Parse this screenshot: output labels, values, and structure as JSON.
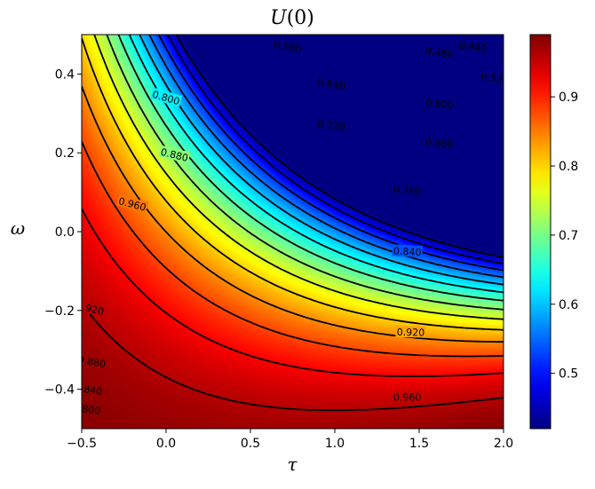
{
  "chart_data": {
    "type": "heatmap",
    "title_main": "U",
    "title_arg": "(0)",
    "xlabel": "τ",
    "ylabel": "ω",
    "xlim": [
      -0.5,
      2.0
    ],
    "ylim": [
      -0.5,
      0.5
    ],
    "x_ticks": [
      "−0.5",
      "0.0",
      "0.5",
      "1.0",
      "1.5",
      "2.0"
    ],
    "x_tick_values": [
      -0.5,
      0.0,
      0.5,
      1.0,
      1.5,
      2.0
    ],
    "y_ticks": [
      "−0.4",
      "−0.2",
      "0.0",
      "0.2",
      "0.4"
    ],
    "y_tick_values": [
      -0.4,
      -0.2,
      0.0,
      0.2,
      0.4
    ],
    "colormap": "jet",
    "color_range": [
      0.42,
      0.99
    ],
    "colorbar_ticks": [
      "0.5",
      "0.6",
      "0.7",
      "0.8",
      "0.9"
    ],
    "colorbar_tick_values": [
      0.5,
      0.6,
      0.7,
      0.8,
      0.9
    ],
    "contour_levels": [
      0.44,
      0.48,
      0.52,
      0.56,
      0.6,
      0.64,
      0.68,
      0.72,
      0.76,
      0.8,
      0.84,
      0.88,
      0.92,
      0.96
    ],
    "contour_labels": [
      {
        "text": "0.440",
        "tau": 1.82,
        "omega": 0.47
      },
      {
        "text": "0.480",
        "tau": 1.62,
        "omega": 0.455
      },
      {
        "text": "0.520",
        "tau": 1.95,
        "omega": 0.39
      },
      {
        "text": "0.560",
        "tau": 0.72,
        "omega": 0.47
      },
      {
        "text": "0.600",
        "tau": 1.62,
        "omega": 0.325
      },
      {
        "text": "0.640",
        "tau": 0.98,
        "omega": 0.375
      },
      {
        "text": "0.680",
        "tau": 1.62,
        "omega": 0.225
      },
      {
        "text": "0.720",
        "tau": 0.98,
        "omega": 0.27
      },
      {
        "text": "0.760",
        "tau": 1.43,
        "omega": 0.105
      },
      {
        "text": "0.800",
        "tau": 0.0,
        "omega": 0.34
      },
      {
        "text": "0.840",
        "tau": 1.43,
        "omega": -0.05
      },
      {
        "text": "0.880",
        "tau": 0.05,
        "omega": 0.195
      },
      {
        "text": "0.920",
        "tau": 1.45,
        "omega": -0.255
      },
      {
        "text": "0.960",
        "tau": -0.2,
        "omega": 0.07
      },
      {
        "text": "0.960",
        "tau": 1.43,
        "omega": -0.42
      },
      {
        "text": "0.920",
        "tau": -0.45,
        "omega": -0.195
      },
      {
        "text": "0.880",
        "tau": -0.44,
        "omega": -0.33
      },
      {
        "text": "0.840",
        "tau": -0.46,
        "omega": -0.4
      },
      {
        "text": "0.800",
        "tau": -0.47,
        "omega": -0.45
      }
    ]
  }
}
